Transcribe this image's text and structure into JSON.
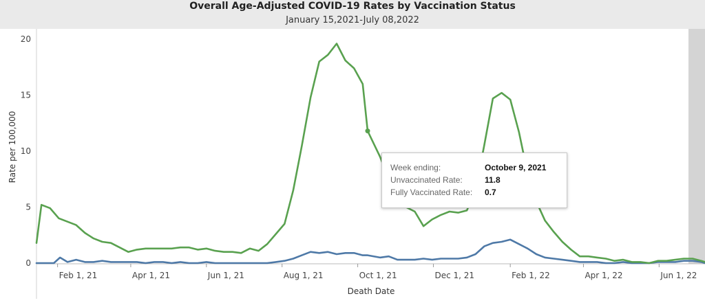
{
  "header": {
    "title": "Overall Age-Adjusted COVID-19 Rates by Vaccination Status",
    "subtitle": "January 15,2021-July 08,2022"
  },
  "chart_data": {
    "type": "line",
    "xlabel": "Death Date",
    "ylabel": "Rate per 100,000",
    "ylim": [
      0,
      20
    ],
    "yticks": [
      0,
      5,
      10,
      15,
      20
    ],
    "xtick_labels": [
      "Feb 1, 21",
      "Apr 1, 21",
      "Jun 1, 21",
      "Aug 1, 21",
      "Oct 1, 21",
      "Dec 1, 21",
      "Feb 1, 22",
      "Apr 1, 22",
      "Jun 1, 22"
    ],
    "xtick_dates": [
      "2021-02-01",
      "2021-04-01",
      "2021-06-01",
      "2021-08-01",
      "2021-10-01",
      "2021-12-01",
      "2022-02-01",
      "2022-04-01",
      "2022-06-01"
    ],
    "x_range": [
      "2021-01-15",
      "2022-07-08"
    ],
    "grid": false,
    "series": [
      {
        "name": "Unvaccinated Rate",
        "color": "#59a14f",
        "points": [
          [
            "2021-01-15",
            1.8
          ],
          [
            "2021-01-19",
            5.2
          ],
          [
            "2021-01-26",
            4.9
          ],
          [
            "2021-02-02",
            4.0
          ],
          [
            "2021-02-09",
            3.7
          ],
          [
            "2021-02-16",
            3.4
          ],
          [
            "2021-02-23",
            2.7
          ],
          [
            "2021-03-02",
            2.2
          ],
          [
            "2021-03-09",
            1.9
          ],
          [
            "2021-03-16",
            1.8
          ],
          [
            "2021-03-23",
            1.4
          ],
          [
            "2021-03-30",
            1.0
          ],
          [
            "2021-04-06",
            1.2
          ],
          [
            "2021-04-13",
            1.3
          ],
          [
            "2021-04-20",
            1.3
          ],
          [
            "2021-04-27",
            1.3
          ],
          [
            "2021-05-04",
            1.3
          ],
          [
            "2021-05-11",
            1.4
          ],
          [
            "2021-05-18",
            1.4
          ],
          [
            "2021-05-25",
            1.2
          ],
          [
            "2021-06-01",
            1.3
          ],
          [
            "2021-06-08",
            1.1
          ],
          [
            "2021-06-15",
            1.0
          ],
          [
            "2021-06-22",
            1.0
          ],
          [
            "2021-06-29",
            0.9
          ],
          [
            "2021-07-06",
            1.3
          ],
          [
            "2021-07-13",
            1.1
          ],
          [
            "2021-07-20",
            1.7
          ],
          [
            "2021-07-27",
            2.6
          ],
          [
            "2021-08-03",
            3.5
          ],
          [
            "2021-08-10",
            6.5
          ],
          [
            "2021-08-17",
            10.5
          ],
          [
            "2021-08-24",
            14.8
          ],
          [
            "2021-08-31",
            18.0
          ],
          [
            "2021-09-07",
            18.6
          ],
          [
            "2021-09-14",
            19.6
          ],
          [
            "2021-09-21",
            18.1
          ],
          [
            "2021-09-28",
            17.4
          ],
          [
            "2021-10-05",
            16.0
          ],
          [
            "2021-10-09",
            11.8
          ],
          [
            "2021-10-19",
            9.5
          ],
          [
            "2021-10-26",
            7.5
          ],
          [
            "2021-11-02",
            6.0
          ],
          [
            "2021-11-09",
            5.0
          ],
          [
            "2021-11-16",
            4.6
          ],
          [
            "2021-11-23",
            3.3
          ],
          [
            "2021-11-30",
            3.9
          ],
          [
            "2021-12-07",
            4.3
          ],
          [
            "2021-12-14",
            4.6
          ],
          [
            "2021-12-21",
            4.5
          ],
          [
            "2021-12-28",
            4.7
          ],
          [
            "2022-01-04",
            6.5
          ],
          [
            "2022-01-11",
            10.5
          ],
          [
            "2022-01-18",
            14.7
          ],
          [
            "2022-01-25",
            15.2
          ],
          [
            "2022-02-01",
            14.6
          ],
          [
            "2022-02-08",
            11.7
          ],
          [
            "2022-02-15",
            8.0
          ],
          [
            "2022-02-22",
            5.5
          ],
          [
            "2022-03-01",
            3.8
          ],
          [
            "2022-03-08",
            2.8
          ],
          [
            "2022-03-15",
            1.9
          ],
          [
            "2022-03-22",
            1.2
          ],
          [
            "2022-03-29",
            0.6
          ],
          [
            "2022-04-05",
            0.6
          ],
          [
            "2022-04-12",
            0.5
          ],
          [
            "2022-04-19",
            0.4
          ],
          [
            "2022-04-26",
            0.2
          ],
          [
            "2022-05-03",
            0.3
          ],
          [
            "2022-05-10",
            0.1
          ],
          [
            "2022-05-17",
            0.1
          ],
          [
            "2022-05-24",
            0.0
          ],
          [
            "2022-05-31",
            0.2
          ],
          [
            "2022-06-07",
            0.2
          ],
          [
            "2022-06-14",
            0.3
          ],
          [
            "2022-06-21",
            0.4
          ],
          [
            "2022-06-28",
            0.4
          ],
          [
            "2022-07-05",
            0.2
          ],
          [
            "2022-07-08",
            0.1
          ]
        ]
      },
      {
        "name": "Fully Vaccinated Rate",
        "color": "#4e79a7",
        "points": [
          [
            "2021-01-15",
            0.0
          ],
          [
            "2021-01-26",
            0.0
          ],
          [
            "2021-01-29",
            0.0
          ],
          [
            "2021-02-03",
            0.5
          ],
          [
            "2021-02-09",
            0.1
          ],
          [
            "2021-02-16",
            0.3
          ],
          [
            "2021-02-23",
            0.1
          ],
          [
            "2021-03-02",
            0.1
          ],
          [
            "2021-03-09",
            0.2
          ],
          [
            "2021-03-16",
            0.1
          ],
          [
            "2021-03-23",
            0.1
          ],
          [
            "2021-03-30",
            0.1
          ],
          [
            "2021-04-06",
            0.1
          ],
          [
            "2021-04-13",
            0.0
          ],
          [
            "2021-04-20",
            0.1
          ],
          [
            "2021-04-27",
            0.1
          ],
          [
            "2021-05-04",
            0.0
          ],
          [
            "2021-05-11",
            0.1
          ],
          [
            "2021-05-18",
            0.0
          ],
          [
            "2021-05-25",
            0.0
          ],
          [
            "2021-06-01",
            0.1
          ],
          [
            "2021-06-08",
            0.0
          ],
          [
            "2021-06-15",
            0.0
          ],
          [
            "2021-06-22",
            0.0
          ],
          [
            "2021-06-29",
            0.0
          ],
          [
            "2021-07-06",
            0.0
          ],
          [
            "2021-07-13",
            0.0
          ],
          [
            "2021-07-20",
            0.0
          ],
          [
            "2021-07-27",
            0.1
          ],
          [
            "2021-08-03",
            0.2
          ],
          [
            "2021-08-10",
            0.4
          ],
          [
            "2021-08-17",
            0.7
          ],
          [
            "2021-08-24",
            1.0
          ],
          [
            "2021-08-31",
            0.9
          ],
          [
            "2021-09-07",
            1.0
          ],
          [
            "2021-09-14",
            0.8
          ],
          [
            "2021-09-21",
            0.9
          ],
          [
            "2021-09-28",
            0.9
          ],
          [
            "2021-10-05",
            0.7
          ],
          [
            "2021-10-09",
            0.7
          ],
          [
            "2021-10-19",
            0.5
          ],
          [
            "2021-10-26",
            0.6
          ],
          [
            "2021-11-02",
            0.3
          ],
          [
            "2021-11-09",
            0.3
          ],
          [
            "2021-11-16",
            0.3
          ],
          [
            "2021-11-23",
            0.4
          ],
          [
            "2021-11-30",
            0.3
          ],
          [
            "2021-12-07",
            0.4
          ],
          [
            "2021-12-14",
            0.4
          ],
          [
            "2021-12-21",
            0.4
          ],
          [
            "2021-12-28",
            0.5
          ],
          [
            "2022-01-04",
            0.8
          ],
          [
            "2022-01-11",
            1.5
          ],
          [
            "2022-01-18",
            1.8
          ],
          [
            "2022-01-25",
            1.9
          ],
          [
            "2022-02-01",
            2.1
          ],
          [
            "2022-02-08",
            1.7
          ],
          [
            "2022-02-15",
            1.3
          ],
          [
            "2022-02-22",
            0.8
          ],
          [
            "2022-03-01",
            0.5
          ],
          [
            "2022-03-08",
            0.4
          ],
          [
            "2022-03-15",
            0.3
          ],
          [
            "2022-03-22",
            0.2
          ],
          [
            "2022-03-29",
            0.1
          ],
          [
            "2022-04-05",
            0.1
          ],
          [
            "2022-04-12",
            0.1
          ],
          [
            "2022-04-19",
            0.0
          ],
          [
            "2022-04-26",
            0.0
          ],
          [
            "2022-05-03",
            0.1
          ],
          [
            "2022-05-10",
            0.0
          ],
          [
            "2022-05-17",
            0.0
          ],
          [
            "2022-05-24",
            0.0
          ],
          [
            "2022-05-31",
            0.1
          ],
          [
            "2022-06-07",
            0.1
          ],
          [
            "2022-06-14",
            0.1
          ],
          [
            "2022-06-21",
            0.2
          ],
          [
            "2022-06-28",
            0.2
          ],
          [
            "2022-07-05",
            0.1
          ],
          [
            "2022-07-08",
            0.0
          ]
        ]
      }
    ],
    "highlight": {
      "series": "Unvaccinated Rate",
      "date": "2021-10-09",
      "value": 11.8
    }
  },
  "tooltip": {
    "week_label": "Week ending:",
    "week_value": "October 9, 2021",
    "unvax_label": "Unvaccinated Rate:",
    "unvax_value": "11.8",
    "vax_label": "Fully Vaccinated Rate:",
    "vax_value": "0.7"
  }
}
